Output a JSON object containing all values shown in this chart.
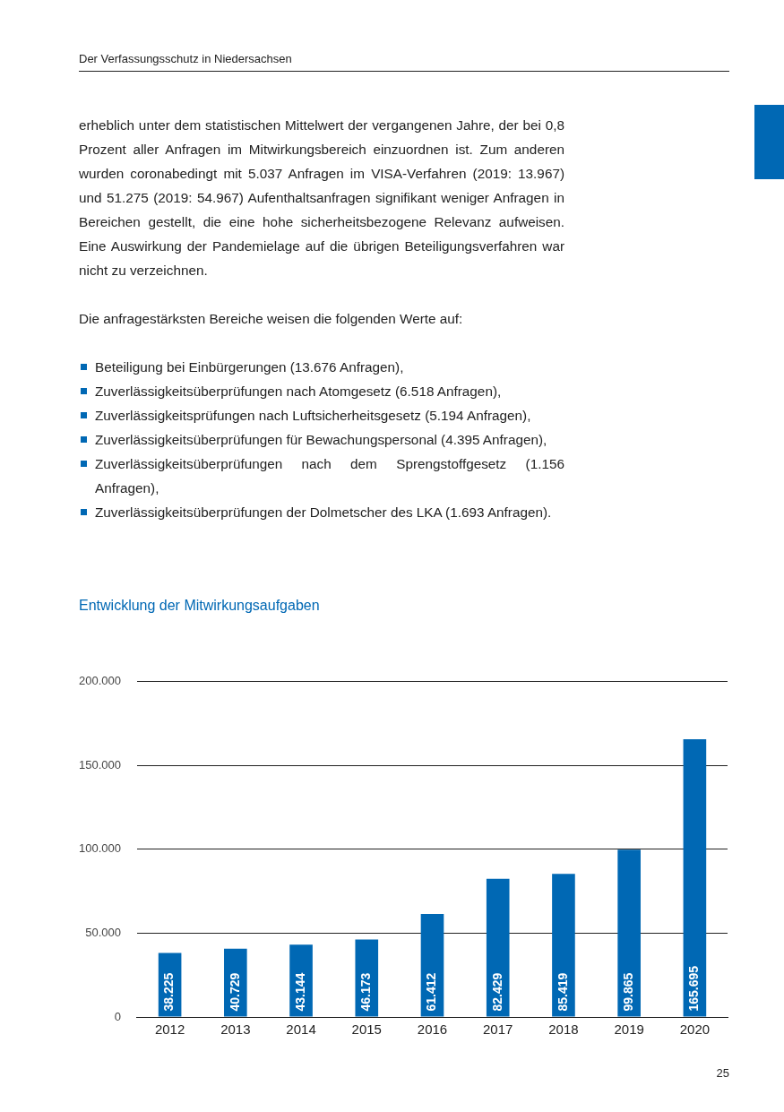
{
  "chart_data": {
    "type": "bar",
    "title": "Entwicklung der Mitwirkungsaufgaben",
    "categories": [
      "2012",
      "2013",
      "2014",
      "2015",
      "2016",
      "2017",
      "2018",
      "2019",
      "2020"
    ],
    "values": [
      38225,
      40729,
      43144,
      46173,
      61412,
      82429,
      85419,
      99865,
      165695
    ],
    "value_labels": [
      "38.225",
      "40.729",
      "43.144",
      "46.173",
      "61.412",
      "82.429",
      "85.419",
      "99.865",
      "165.695"
    ],
    "color": "#0068b4",
    "ylim": [
      0,
      200000
    ],
    "yticks": [
      {
        "value": 0,
        "label": "0"
      },
      {
        "value": 50000,
        "label": "50.000"
      },
      {
        "value": 100000,
        "label": "100.000"
      },
      {
        "value": 150000,
        "label": "150.000"
      },
      {
        "value": 200000,
        "label": "200.000"
      }
    ],
    "grid": "y",
    "annotations": [
      "Der Verfassungsschutz in Niedersachsen",
      "erheblich unter dem statistischen Mittelwert der vergangenen Jahre, der bei 0,8 Prozent aller Anfragen im Mitwirkungsbereich einzuordnen ist. Zum anderen wurden coronabedingt mit 5.037 Anfragen im VISA-Verfahren (2019: 13.967) und 51.275 (2019: 54.967) Aufenthaltsanfragen signifikant weniger Anfragen in Bereichen gestellt, die eine hohe sicherheitsbezogene Relevanz aufweisen. Eine Auswirkung der Pandemielage auf die übrigen Beteiligungsverfahren war nicht zu verzeichnen.",
      "Die anfragestärksten Bereiche weisen die folgenden Werte auf:",
      "Beteiligung bei Einbürgerungen (13.676 Anfragen),",
      "Zuverlässigkeitsüberprüfungen nach Atomgesetz (6.518 Anfragen),",
      "Zuverlässigkeitsprüfungen nach Luftsicherheitsgesetz (5.194 Anfragen),",
      "Zuverlässigkeitsüberprüfungen für Bewachungspersonal (4.395 Anfragen),",
      "Zuverlässigkeitsüberprüfungen nach dem Sprengstoffgesetz (1.156 Anfragen),",
      "Zuverlässigkeitsüberprüfungen der Dolmetscher des LKA (1.693 Anfragen).",
      "25"
    ]
  }
}
